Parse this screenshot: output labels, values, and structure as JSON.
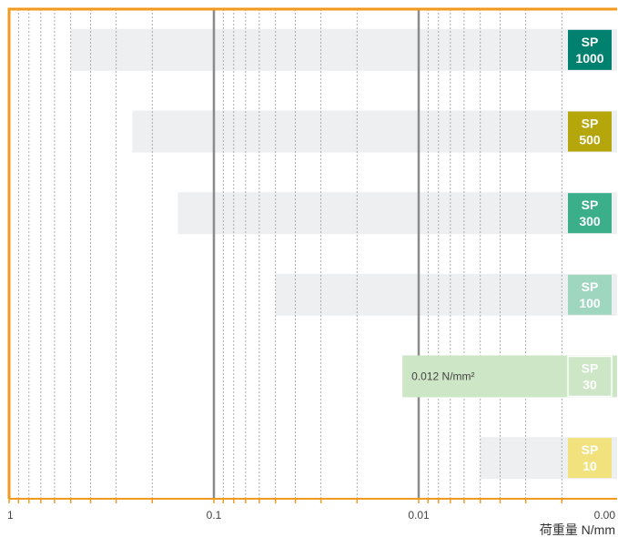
{
  "chart_data": {
    "type": "bar",
    "orientation": "horizontal",
    "x_scale": "log",
    "x_reversed": true,
    "xlim": [
      1,
      0.001
    ],
    "xticks": [
      {
        "value": 1,
        "label": "1"
      },
      {
        "value": 0.1,
        "label": "0.1"
      },
      {
        "value": 0.01,
        "label": "0.01"
      },
      {
        "value": 0.001,
        "label": "0.00"
      }
    ],
    "xlabel": "荷重量 N/mm",
    "grid": true,
    "frame_color": "#f39a1e",
    "grid_color": "#999999",
    "track_color": "#eeeff1",
    "series": [
      {
        "line1": "SP",
        "line2": "1000",
        "min": 0.5,
        "color": "#00806e"
      },
      {
        "line1": "SP",
        "line2": "500",
        "min": 0.25,
        "color": "#b5a60b"
      },
      {
        "line1": "SP",
        "line2": "300",
        "min": 0.15,
        "color": "#3aaf8a"
      },
      {
        "line1": "SP",
        "line2": "100",
        "min": 0.05,
        "color": "#9fd6c0"
      },
      {
        "line1": "SP",
        "line2": "30",
        "min": 0.012,
        "color": "#cde6c5",
        "bar_color": "#cde6c5",
        "annotation": "0.012 N/mm²"
      },
      {
        "line1": "SP",
        "line2": "10",
        "min": 0.005,
        "color": "#f2e27d"
      }
    ]
  }
}
